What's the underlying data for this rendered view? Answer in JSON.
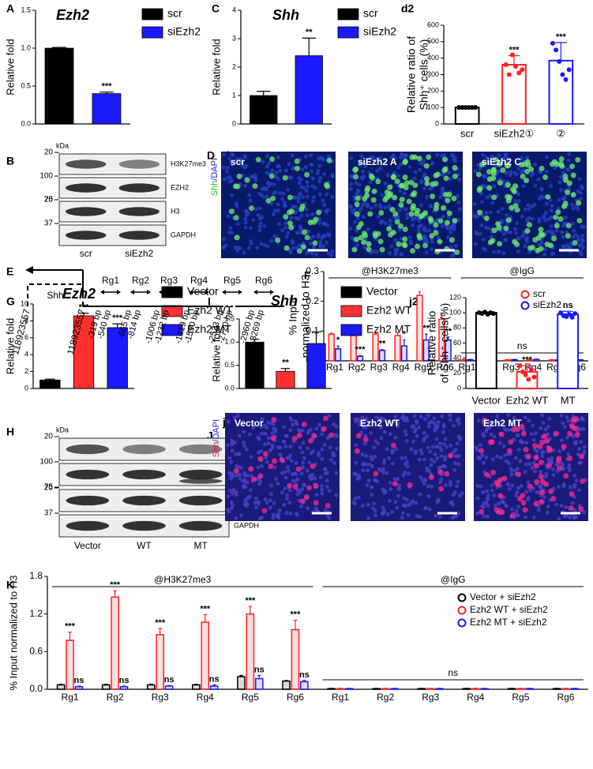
{
  "panel_labels": [
    "A",
    "C",
    "d2",
    "B",
    "D",
    "d1",
    "E",
    "F",
    "G",
    "I",
    "j2",
    "H",
    "J",
    "j1",
    "K"
  ],
  "chart_data": [
    {
      "type": "bar",
      "title": "Ezh2",
      "ylabel": "Relative fold",
      "categories": [
        "scr",
        "siEzh2"
      ],
      "values": [
        1.0,
        0.4
      ],
      "errors": [
        0.01,
        0.02
      ],
      "colors": [
        "#000000",
        "#1a1aff"
      ],
      "bar_style": "solid",
      "annotations": [
        null,
        "***"
      ],
      "legend": "right",
      "ylim": [
        0,
        1.5
      ],
      "yticks": [
        {
          "value": 0,
          "label": "0.0"
        },
        0.5,
        {
          "value": 1,
          "label": "1.0"
        },
        1.5
      ]
    },
    {
      "type": "bar",
      "title": "Shh",
      "ylabel": "Relative fold",
      "categories": [
        "scr",
        "siEzh2"
      ],
      "values": [
        1.0,
        2.4
      ],
      "errors": [
        0.15,
        0.62
      ],
      "colors": [
        "#000000",
        "#1a1aff"
      ],
      "bar_style": "solid",
      "annotations": [
        null,
        "**"
      ],
      "legend": "right",
      "ylim": [
        0,
        4
      ],
      "yticks": [
        0,
        1,
        2,
        3,
        4
      ]
    },
    {
      "type": "bar",
      "ylabel": [
        "Relative ratio of",
        "Shh⁺ cells (%)"
      ],
      "categories": [
        "scr",
        "siEzh2①",
        "②"
      ],
      "values": [
        100,
        360,
        385
      ],
      "errors": [
        5,
        55,
        110
      ],
      "colors": [
        "#000000",
        "#ff2020",
        "#1a1aff"
      ],
      "bar_style": "hollow",
      "annotations": [
        null,
        "***",
        "***"
      ],
      "points": [
        [
          100,
          100,
          100,
          100,
          100,
          100
        ],
        [
          360,
          300,
          420,
          350,
          310,
          330
        ],
        [
          490,
          450,
          380,
          300,
          270,
          330
        ]
      ],
      "ylim": [
        0,
        600
      ],
      "yticks": [
        0,
        100,
        200,
        300,
        400,
        500,
        600
      ]
    },
    {
      "type": "bar",
      "ylabel": [
        "% Input",
        "normalized to H3"
      ],
      "categories": [
        "Rg1",
        "Rg2",
        "Rg3",
        "Rg4",
        "Rg5",
        "Rg6",
        "Rg1",
        "Rg2",
        "Rg3",
        "Rg4",
        "Rg5",
        "Rg6"
      ],
      "groups": [
        "@H3K27me3",
        "@IgG"
      ],
      "group_notes": [
        null,
        "ns"
      ],
      "bar_style": "tinted",
      "legend": "upper right",
      "series": [
        {
          "name": "scr",
          "color": "#ff2020",
          "values": [
            0.09,
            0.085,
            0.09,
            0.085,
            0.22,
            0.14,
            0.003,
            0.003,
            0.003,
            0.003,
            0.003,
            0.003
          ],
          "errors": [
            0.003,
            0.01,
            0.004,
            0.01,
            0.012,
            0.02,
            0.001,
            0.001,
            0.001,
            0.001,
            0.001,
            0.001
          ],
          "annotations": [
            null,
            null,
            null,
            null,
            null,
            null,
            null,
            null,
            null,
            null,
            null,
            null
          ]
        },
        {
          "name": "siEzh2",
          "color": "#1a1acc",
          "values": [
            0.04,
            0.015,
            0.035,
            0.05,
            0.07,
            0.07,
            0.004,
            0.006,
            0.004,
            0.005,
            0.003,
            0.003
          ],
          "errors": [
            0.01,
            0.003,
            0.003,
            0.02,
            0.02,
            0.01,
            0.001,
            0.002,
            0.001,
            0.001,
            0.001,
            0.001
          ],
          "annotations": [
            "*",
            "***",
            "**",
            "*",
            "**",
            "**",
            null,
            null,
            null,
            null,
            null,
            null
          ]
        }
      ],
      "ylim": [
        0,
        0.3
      ],
      "yticks": [
        {
          "value": 0,
          "label": "0.0"
        },
        0.1,
        0.2,
        0.3
      ]
    },
    {
      "type": "bar",
      "title": "Ezh2",
      "ylabel": "Relative fold",
      "categories": [
        "Vector",
        "Ezh2 WT",
        "Ezh2 MT"
      ],
      "values": [
        1.0,
        8.6,
        7.2
      ],
      "errors": [
        0.1,
        0.3,
        0.45
      ],
      "colors": [
        "#000000",
        "#ff3030",
        "#1a1aff"
      ],
      "bar_style": "solid",
      "annotations": [
        null,
        "***",
        "***"
      ],
      "legend": "right",
      "ylim": [
        0,
        10
      ],
      "yticks": [
        0,
        2,
        4,
        6,
        8,
        10
      ]
    },
    {
      "type": "bar",
      "title": "Shh",
      "ylabel": "Relative fold",
      "categories": [
        "Vector",
        "Ezh2 WT",
        "Ezh2 MT"
      ],
      "values": [
        1.0,
        0.37,
        0.97
      ],
      "errors": [
        0.06,
        0.06,
        0.25
      ],
      "colors": [
        "#000000",
        "#ff3030",
        "#1a1aff"
      ],
      "bar_style": "solid",
      "annotations": [
        null,
        "**",
        null
      ],
      "legend": "right",
      "ylim": [
        0,
        1.5
      ],
      "yticks": [
        {
          "value": 0,
          "label": "0.0"
        },
        0.5,
        {
          "value": 1,
          "label": "1.0"
        },
        1.5
      ]
    },
    {
      "type": "bar",
      "ylabel": [
        "Relative ratio",
        "of Shh⁺ cells(%)"
      ],
      "categories": [
        "Vector",
        "Ezh2 WT",
        "MT"
      ],
      "values": [
        100,
        22,
        98
      ],
      "errors": [
        1,
        8,
        4
      ],
      "colors": [
        "#000000",
        "#ff2020",
        "#1a1aff"
      ],
      "bar_style": "hollow",
      "annotations": [
        null,
        "***",
        "ns"
      ],
      "points": [
        [
          100,
          99,
          101,
          98,
          100,
          99
        ],
        [
          30,
          22,
          18,
          12,
          25,
          15
        ],
        [
          100,
          96,
          95,
          98,
          94,
          99
        ]
      ],
      "ylim": [
        0,
        120
      ],
      "yticks": [
        0,
        20,
        40,
        60,
        80,
        100,
        120
      ]
    },
    {
      "type": "bar",
      "ylabel": "% Input normalized to H3",
      "categories": [
        "Rg1",
        "Rg2",
        "Rg3",
        "Rg4",
        "Rg5",
        "Rg6",
        "Rg1",
        "Rg2",
        "Rg3",
        "Rg4",
        "Rg5",
        "Rg6"
      ],
      "groups": [
        "@H3K27me3",
        "@IgG"
      ],
      "group_notes": [
        null,
        "ns"
      ],
      "bar_style": "tinted",
      "legend": "upper right",
      "series": [
        {
          "name": "Vector + siEzh2",
          "color": "#000000",
          "values": [
            0.07,
            0.07,
            0.07,
            0.07,
            0.2,
            0.13,
            0.01,
            0.01,
            0.01,
            0.01,
            0.01,
            0.01
          ],
          "errors": [
            0.01,
            0.01,
            0.01,
            0.01,
            0.02,
            0.01,
            0.005,
            0.005,
            0.005,
            0.005,
            0.005,
            0.005
          ],
          "annotations": [
            null,
            null,
            null,
            null,
            null,
            null,
            null,
            null,
            null,
            null,
            null,
            null
          ]
        },
        {
          "name": "Ezh2 WT + siEzh2",
          "color": "#ff2020",
          "values": [
            0.78,
            1.47,
            0.87,
            1.07,
            1.2,
            0.95,
            0.01,
            0.01,
            0.01,
            0.01,
            0.01,
            0.01
          ],
          "errors": [
            0.13,
            0.1,
            0.1,
            0.12,
            0.12,
            0.15,
            0.005,
            0.005,
            0.005,
            0.005,
            0.005,
            0.005
          ],
          "annotations": [
            "***",
            "***",
            "***",
            "***",
            "***",
            "***",
            null,
            null,
            null,
            null,
            null,
            null
          ]
        },
        {
          "name": "Ezh2 MT + siEzh2",
          "color": "#1a1aff",
          "values": [
            0.04,
            0.04,
            0.05,
            0.05,
            0.17,
            0.12,
            0.01,
            0.01,
            0.01,
            0.01,
            0.01,
            0.01
          ],
          "errors": [
            0.01,
            0.01,
            0.01,
            0.02,
            0.05,
            0.02,
            0.005,
            0.005,
            0.005,
            0.005,
            0.005,
            0.005
          ],
          "annotations": [
            "ns",
            "ns",
            "ns",
            "ns",
            "ns",
            "ns",
            null,
            null,
            null,
            null,
            null,
            null
          ]
        }
      ],
      "ylim": [
        0,
        1.8
      ],
      "yticks": [
        {
          "value": 0,
          "label": "0.0"
        },
        0.6,
        1.2,
        1.8
      ]
    }
  ],
  "blots": [
    {
      "kda": "kDa",
      "lanes": [
        "scr",
        "siEzh2"
      ],
      "rows": [
        {
          "protein": "H3K27me3",
          "markers": [
            20
          ]
        },
        {
          "protein": "EZH2",
          "markers": [
            100,
            75
          ]
        },
        {
          "protein": "H3",
          "markers": [
            20
          ]
        },
        {
          "protein": "GAPDH",
          "markers": [
            37
          ]
        }
      ]
    },
    {
      "kda": "kDa",
      "lanes": [
        "Vector",
        "WT",
        "MT"
      ],
      "rows": [
        {
          "protein": "H3K27me3",
          "markers": [
            20
          ]
        },
        {
          "protein": "EZH2",
          "markers": [
            100,
            75
          ]
        },
        {
          "protein": "H3",
          "markers": [
            20
          ]
        },
        {
          "protein": "GAPDH",
          "markers": [
            37
          ]
        }
      ]
    }
  ],
  "images": [
    {
      "stain": [
        "Shh",
        "/DAPI"
      ],
      "stain_colors": [
        "#22bb22",
        "#2222bb"
      ],
      "cell_color": "#6cf06c",
      "panels": [
        "scr",
        "siEzh2 A",
        "siEzh2 C"
      ]
    },
    {
      "stain": [
        "Shh",
        "/DAPI"
      ],
      "stain_colors": [
        "#ee1133",
        "#2222bb"
      ],
      "cell_color": "#ff2a88",
      "panels": [
        "Vector",
        "Ezh2 WT",
        "Ezh2 MT"
      ]
    }
  ],
  "diagram": {
    "gene": "Shh",
    "coords": [
      118923557,
      118923557
    ],
    "regions": [
      "Rg1",
      "Rg2",
      "Rg3",
      "Rg4",
      "Rg5",
      "Rg6"
    ],
    "distances": [
      "-319 bp",
      "-540 bp",
      "-665 bp",
      "-814 bp",
      "-1006 bp",
      "-1232 bp",
      "-1419 bp",
      "-1590 bp",
      "-2523 bp",
      "-2720 bp",
      "-2960 bp",
      "-3269 bp"
    ]
  }
}
